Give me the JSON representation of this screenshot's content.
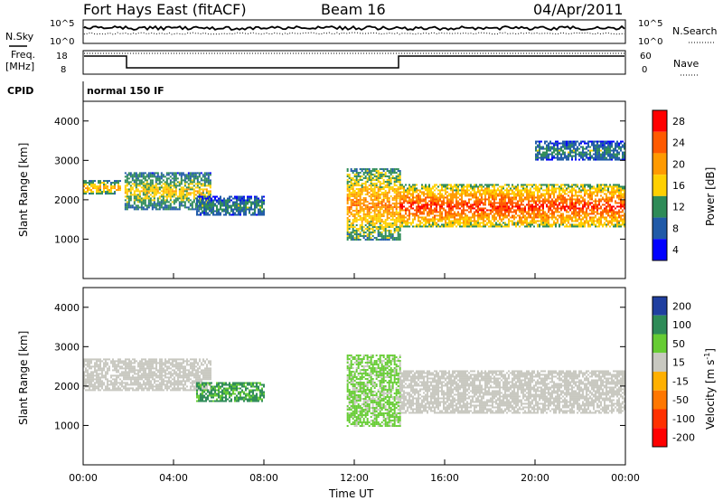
{
  "header": {
    "station": "Fort Hays East (fitACF)",
    "beam": "Beam 16",
    "date": "04/Apr/2011"
  },
  "left_labels": {
    "nsky": "N.Sky",
    "freq": "Freq.",
    "freq_unit": "[MHz]",
    "cpid": "CPID"
  },
  "right_labels": {
    "nsearch": "N.Search",
    "nave": "Nave"
  },
  "cpid_value": "normal 150 IF",
  "noise_ticks_left": [
    "10^5",
    "10^0"
  ],
  "noise_ticks_right": [
    "10^5",
    "10^0"
  ],
  "freq_ticks": [
    "18",
    "8"
  ],
  "nave_ticks": [
    "60",
    "0"
  ],
  "chart_data": [
    {
      "type": "heatmap",
      "name": "power",
      "xlabel": "",
      "ylabel": "Slant Range [km]",
      "y_ticks": [
        "4000",
        "3000",
        "2000",
        "1000"
      ],
      "ylim": [
        0,
        4500
      ],
      "colorbar_label": "Power [dB]",
      "colorbar_ticks": [
        "28",
        "24",
        "20",
        "16",
        "12",
        "8",
        "4"
      ],
      "colorbar_colors": [
        "#ff0000",
        "#ff5a00",
        "#ff9a00",
        "#ffd000",
        "#2e8b57",
        "#205aa8",
        "#0000ff"
      ],
      "echo_bands": [
        {
          "from_ut": "00:00",
          "to_ut": "01:40",
          "range_km": [
            2150,
            2500
          ],
          "level_db": 16
        },
        {
          "from_ut": "01:50",
          "to_ut": "05:40",
          "range_km": [
            1750,
            2700
          ],
          "level_db": 14
        },
        {
          "from_ut": "05:00",
          "to_ut": "08:00",
          "range_km": [
            1600,
            2100
          ],
          "level_db": 10
        },
        {
          "from_ut": "11:40",
          "to_ut": "14:00",
          "range_km": [
            1000,
            2800
          ],
          "level_db": 18
        },
        {
          "from_ut": "14:00",
          "to_ut": "24:00",
          "range_km": [
            1300,
            2400
          ],
          "level_db": 22
        },
        {
          "from_ut": "20:00",
          "to_ut": "24:00",
          "range_km": [
            3000,
            3500
          ],
          "level_db": 10
        }
      ]
    },
    {
      "type": "heatmap",
      "name": "velocity",
      "xlabel": "Time UT",
      "ylabel": "Slant Range [km]",
      "x_ticks": [
        "00:00",
        "04:00",
        "08:00",
        "12:00",
        "16:00",
        "20:00",
        "00:00"
      ],
      "y_ticks": [
        "4000",
        "3000",
        "2000",
        "1000"
      ],
      "ylim": [
        0,
        4500
      ],
      "colorbar_label": "Velocity [m s",
      "colorbar_label_sup": "-1",
      "colorbar_label_end": "]",
      "colorbar_ticks": [
        "200",
        "100",
        "50",
        "15",
        "-15",
        "-50",
        "-100",
        "-200"
      ],
      "colorbar_colors": [
        "#1f3fa0",
        "#2e8b57",
        "#66cc33",
        "#c8c8c0",
        "#ffb000",
        "#ff7700",
        "#ff3000",
        "#ff0000"
      ],
      "echo_bands": [
        {
          "from_ut": "00:00",
          "to_ut": "05:40",
          "range_km": [
            1900,
            2700
          ],
          "velocity_ms": 0
        },
        {
          "from_ut": "05:00",
          "to_ut": "08:00",
          "range_km": [
            1600,
            2100
          ],
          "velocity_ms": 80
        },
        {
          "from_ut": "11:40",
          "to_ut": "14:00",
          "range_km": [
            1000,
            2800
          ],
          "velocity_ms": 40
        },
        {
          "from_ut": "14:00",
          "to_ut": "24:00",
          "range_km": [
            1300,
            2400
          ],
          "velocity_ms": 0
        }
      ]
    }
  ],
  "colors": {
    "axis": "#000000",
    "freq_line": "#000000"
  }
}
